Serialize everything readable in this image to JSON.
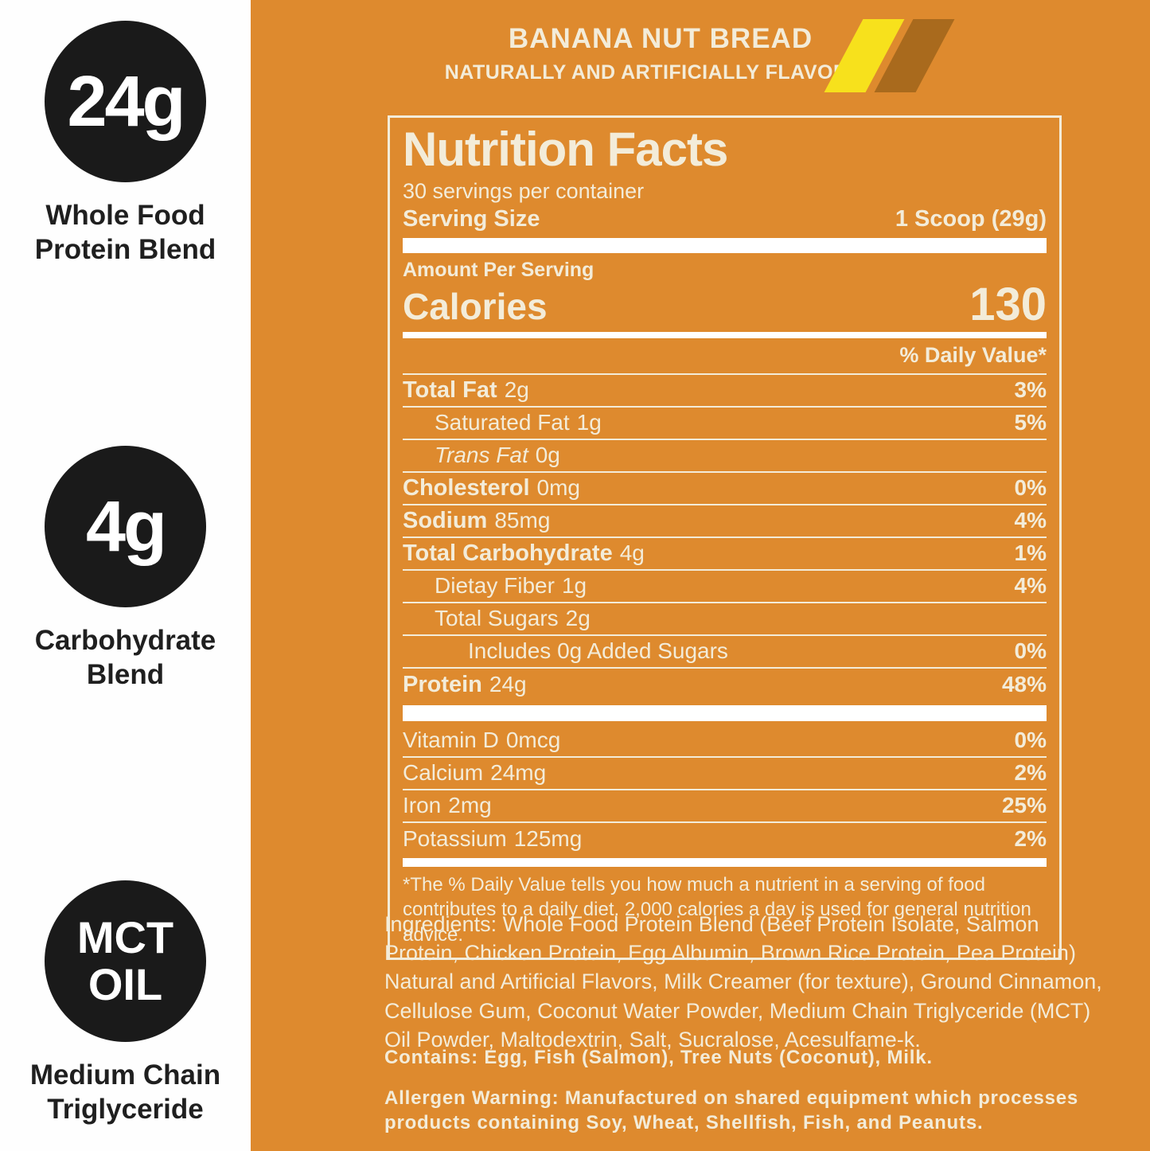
{
  "colors": {
    "panel_orange": "#de8a2e",
    "cream_text": "#f3ecd9",
    "badge_black": "#1a1a1a",
    "stripe_yellow": "#f7e11c",
    "stripe_brown": "#a96a1d"
  },
  "sidebar": {
    "badges": [
      {
        "circle_line1": "24g",
        "circle_line2": "",
        "label_line1": "Whole Food",
        "label_line2": "Protein Blend"
      },
      {
        "circle_line1": "4g",
        "circle_line2": "",
        "label_line1": "Carbohydrate",
        "label_line2": "Blend"
      },
      {
        "circle_line1": "MCT",
        "circle_line2": "OIL",
        "label_line1": "Medium Chain",
        "label_line2": "Triglyceride"
      }
    ]
  },
  "header": {
    "title": "BANANA NUT BREAD",
    "subtitle": "NATURALLY AND ARTIFICIALLY FLAVORED"
  },
  "nutrition": {
    "title": "Nutrition Facts",
    "servings_per_container": "30 servings per container",
    "serving_size_label": "Serving Size",
    "serving_size_value": "1 Scoop (29g)",
    "amount_per_serving": "Amount Per Serving",
    "calories_label": "Calories",
    "calories_value": "130",
    "daily_value_header": "% Daily Value*",
    "rows": [
      {
        "name": "Total Fat",
        "amount": "2g",
        "dv": "3%"
      },
      {
        "name": "Saturated Fat",
        "amount": "1g",
        "dv": "5%"
      },
      {
        "name": "Trans Fat",
        "amount": "0g",
        "dv": ""
      },
      {
        "name": "Cholesterol",
        "amount": "0mg",
        "dv": "0%"
      },
      {
        "name": "Sodium",
        "amount": "85mg",
        "dv": "4%"
      },
      {
        "name": "Total Carbohydrate",
        "amount": "4g",
        "dv": "1%"
      },
      {
        "name": "Dietay Fiber",
        "amount": "1g",
        "dv": "4%"
      },
      {
        "name": "Total Sugars",
        "amount": "2g",
        "dv": ""
      },
      {
        "name": "Includes 0g Added Sugars",
        "amount": "",
        "dv": "0%"
      },
      {
        "name": "Protein",
        "amount": "24g",
        "dv": "48%"
      }
    ],
    "vitamins": [
      {
        "name": "Vitamin D",
        "amount": "0mcg",
        "dv": "0%"
      },
      {
        "name": "Calcium",
        "amount": "24mg",
        "dv": "2%"
      },
      {
        "name": "Iron",
        "amount": "2mg",
        "dv": "25%"
      },
      {
        "name": "Potassium",
        "amount": "125mg",
        "dv": "2%"
      }
    ],
    "footnote": "*The % Daily Value tells you how much a nutrient in a serving of food contributes to a daily diet. 2,000 calories a day is used for general nutrition advice."
  },
  "footer": {
    "ingredients": "Ingredients: Whole Food Protein Blend (Beef Protein Isolate, Salmon Protein, Chicken Protein, Egg Albumin, Brown Rice Protein, Pea Protein) Natural and Artificial Flavors, Milk Creamer (for texture), Ground Cinnamon, Cellulose Gum, Coconut Water Powder, Medium Chain Triglyceride (MCT) Oil Powder, Maltodextrin, Salt, Sucralose, Acesulfame-k.",
    "contains": "Contains: Egg, Fish (Salmon), Tree Nuts (Coconut), Milk.",
    "allergen": "Allergen Warning: Manufactured on shared equipment which processes products containing Soy, Wheat, Shellfish, Fish, and Peanuts."
  }
}
